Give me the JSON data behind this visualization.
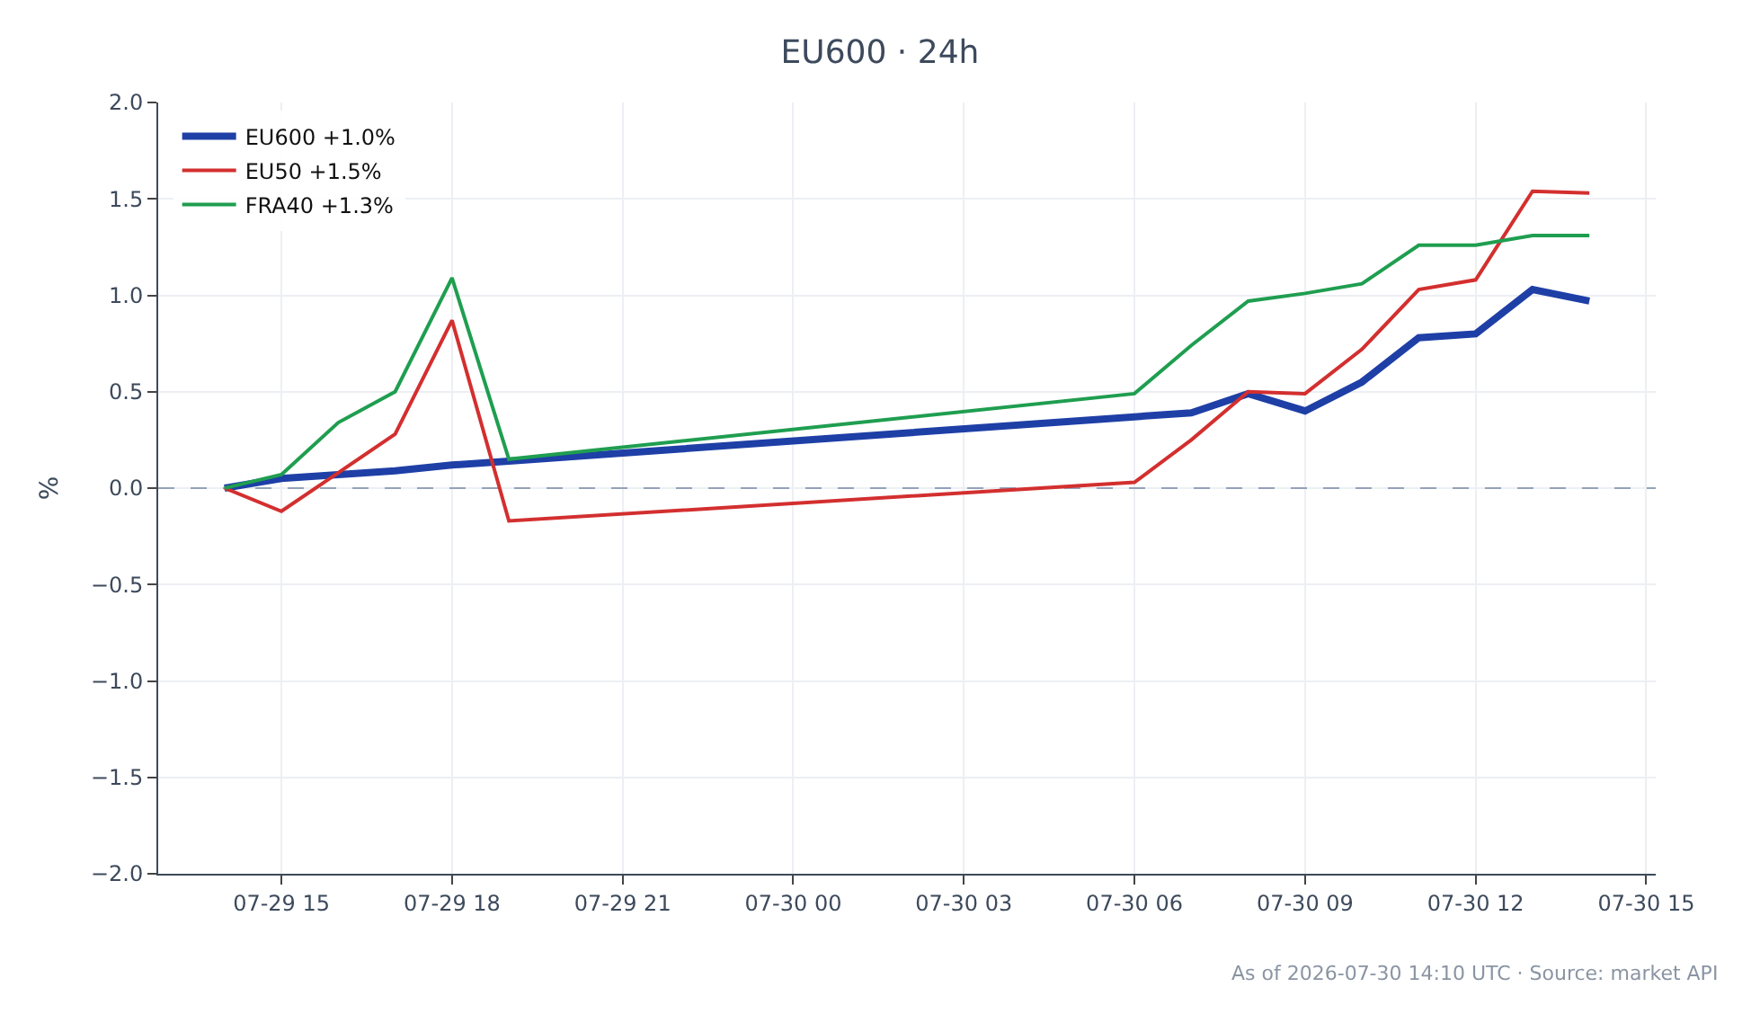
{
  "chart_data": {
    "type": "line",
    "title": "EU600 · 24h",
    "ylabel": "%",
    "x": [
      "2026-07-29T14:00",
      "2026-07-29T15:00",
      "2026-07-29T16:00",
      "2026-07-29T17:00",
      "2026-07-29T18:00",
      "2026-07-29T19:00",
      "2026-07-30T06:00",
      "2026-07-30T07:00",
      "2026-07-30T08:00",
      "2026-07-30T09:00",
      "2026-07-30T10:00",
      "2026-07-30T11:00",
      "2026-07-30T12:00",
      "2026-07-30T13:00",
      "2026-07-30T14:00"
    ],
    "series": [
      {
        "name": "EU600 +1.0%",
        "color": "#1e3fa6",
        "values": [
          0.0,
          0.05,
          0.07,
          0.09,
          0.12,
          0.14,
          0.37,
          0.39,
          0.49,
          0.4,
          0.55,
          0.78,
          0.8,
          1.03,
          0.97
        ]
      },
      {
        "name": "EU50 +1.5%",
        "color": "#d32f2f",
        "values": [
          0.0,
          -0.12,
          0.08,
          0.28,
          0.87,
          -0.17,
          0.03,
          0.25,
          0.5,
          0.49,
          0.72,
          1.03,
          1.08,
          1.54,
          1.53
        ]
      },
      {
        "name": "FRA40 +1.3%",
        "color": "#1f9e50",
        "values": [
          0.0,
          0.07,
          0.34,
          0.5,
          1.09,
          0.15,
          0.49,
          0.74,
          0.97,
          1.01,
          1.06,
          1.26,
          1.26,
          1.31,
          1.31
        ]
      }
    ],
    "xlim": [
      "2026-07-29T12:50",
      "2026-07-30T15:10"
    ],
    "xticks": [
      {
        "value": "2026-07-29T15:00",
        "label": "07-29 15"
      },
      {
        "value": "2026-07-29T18:00",
        "label": "07-29 18"
      },
      {
        "value": "2026-07-29T21:00",
        "label": "07-29 21"
      },
      {
        "value": "2026-07-30T00:00",
        "label": "07-30 00"
      },
      {
        "value": "2026-07-30T03:00",
        "label": "07-30 03"
      },
      {
        "value": "2026-07-30T06:00",
        "label": "07-30 06"
      },
      {
        "value": "2026-07-30T09:00",
        "label": "07-30 09"
      },
      {
        "value": "2026-07-30T12:00",
        "label": "07-30 12"
      },
      {
        "value": "2026-07-30T15:00",
        "label": "07-30 15"
      }
    ],
    "ylim": [
      -2,
      2
    ],
    "yticks": [
      {
        "value": -2,
        "label": "−2.0"
      },
      {
        "value": -1.5,
        "label": "−1.5"
      },
      {
        "value": -1,
        "label": "−1.0"
      },
      {
        "value": -0.5,
        "label": "−0.5"
      },
      {
        "value": 0,
        "label": "0.0"
      },
      {
        "value": 0.5,
        "label": "0.5"
      },
      {
        "value": 1,
        "label": "1.0"
      },
      {
        "value": 1.5,
        "label": "1.5"
      },
      {
        "value": 2,
        "label": "2.0"
      }
    ],
    "ref_lines": [
      {
        "axis": "y",
        "value": 0,
        "color": "#94a3b8",
        "line_style": "dashed"
      }
    ],
    "grid": true,
    "legend": "top left",
    "line_style": "solid",
    "marker": "none",
    "annotations": [
      "As of 2026-07-30 14:10 UTC · Source: market API"
    ]
  }
}
